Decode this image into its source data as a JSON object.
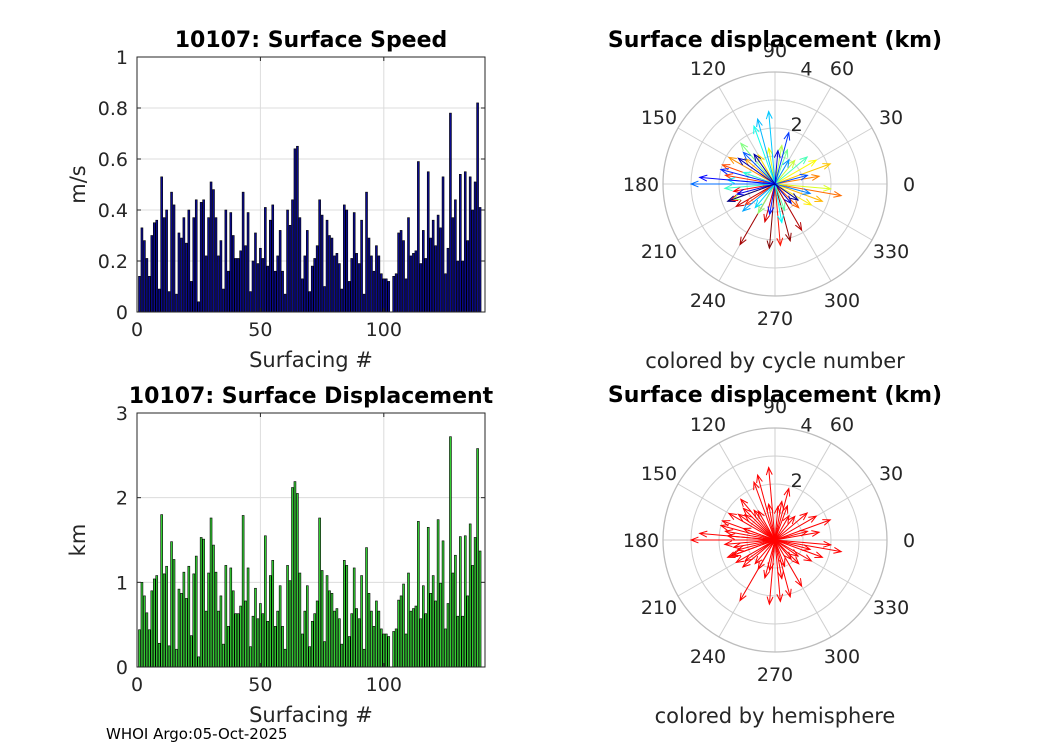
{
  "footer": "WHOI Argo:05-Oct-2025",
  "chart_data": [
    {
      "type": "bar",
      "title": "10107: Surface Speed",
      "xlabel": "Surfacing #",
      "ylabel": "m/s",
      "xlim": [
        0,
        141
      ],
      "ylim": [
        0,
        1
      ],
      "xticks": [
        "0",
        "50",
        "100"
      ],
      "yticks": [
        "0",
        "0.2",
        "0.4",
        "0.6",
        "0.8",
        "1"
      ],
      "color": "#0a0a8f",
      "values": [
        0.14,
        0.33,
        0.28,
        0.21,
        0.14,
        0.3,
        0.35,
        0.36,
        0.09,
        0.53,
        0.37,
        0.4,
        0.08,
        0.47,
        0.42,
        0.07,
        0.31,
        0.29,
        0.37,
        0.27,
        0.4,
        0.12,
        0.37,
        0.44,
        0.04,
        0.43,
        0.44,
        0.22,
        0.37,
        0.51,
        0.48,
        0.37,
        0.22,
        0.28,
        0.09,
        0.4,
        0.16,
        0.39,
        0.3,
        0.21,
        0.21,
        0.24,
        0.47,
        0.26,
        0.39,
        0.08,
        0.2,
        0.31,
        0.19,
        0.25,
        0.21,
        0.41,
        0.18,
        0.36,
        0.42,
        0.16,
        0.22,
        0.32,
        0.16,
        0.07,
        0.4,
        0.34,
        0.44,
        0.64,
        0.65,
        0.37,
        0.13,
        0.22,
        0.32,
        0.08,
        0.18,
        0.21,
        0.26,
        0.44,
        0.38,
        0.1,
        0.36,
        0.3,
        0.29,
        0.22,
        0.23,
        0.19,
        0.09,
        0.42,
        0.4,
        0.12,
        0.21,
        0.39,
        0.23,
        0.19,
        0.36,
        0.07,
        0.47,
        0.29,
        0.22,
        0.16,
        0.26,
        0.22,
        0.15,
        0.13,
        0.13,
        0.12,
        0.0,
        0.14,
        0.15,
        0.31,
        0.32,
        0.28,
        0.13,
        0.37,
        0.22,
        0.23,
        0.24,
        0.59,
        0.19,
        0.32,
        0.21,
        0.55,
        0.29,
        0.36,
        0.26,
        0.38,
        0.33,
        0.53,
        0.15,
        0.25,
        0.78,
        0.37,
        0.44,
        0.2,
        0.54,
        0.2,
        0.55,
        0.28,
        0.53,
        0.4,
        0.51,
        0.82,
        0.41,
        0.0
      ]
    },
    {
      "type": "bar",
      "title": "10107: Surface Displacement",
      "xlabel": "Surfacing #",
      "ylabel": "km",
      "xlim": [
        0,
        141
      ],
      "ylim": [
        0,
        3
      ],
      "xticks": [
        "0",
        "50",
        "100"
      ],
      "yticks": [
        "0",
        "1",
        "2",
        "3"
      ],
      "color": "#33cc33",
      "values": [
        0.44,
        1.0,
        0.84,
        0.64,
        0.44,
        0.9,
        1.04,
        1.08,
        0.28,
        1.8,
        1.1,
        1.19,
        0.25,
        1.48,
        1.27,
        0.21,
        0.92,
        0.87,
        1.12,
        0.81,
        1.19,
        0.37,
        1.1,
        1.31,
        0.12,
        1.53,
        1.51,
        0.66,
        1.11,
        1.76,
        1.44,
        1.12,
        0.66,
        0.84,
        0.27,
        1.2,
        0.48,
        1.17,
        0.9,
        0.63,
        0.63,
        0.72,
        1.79,
        0.78,
        1.17,
        0.24,
        0.6,
        0.93,
        0.57,
        0.75,
        0.63,
        1.55,
        0.54,
        1.08,
        1.26,
        0.48,
        0.66,
        0.96,
        0.48,
        0.21,
        1.2,
        1.02,
        2.12,
        2.19,
        2.05,
        1.11,
        0.39,
        0.66,
        0.96,
        0.24,
        0.54,
        0.63,
        0.78,
        1.76,
        1.14,
        0.3,
        1.08,
        0.9,
        0.87,
        0.66,
        0.69,
        0.57,
        0.27,
        1.26,
        1.2,
        0.36,
        0.63,
        1.17,
        0.69,
        0.57,
        1.08,
        0.21,
        1.41,
        0.87,
        0.66,
        0.48,
        0.78,
        0.66,
        0.45,
        0.39,
        0.39,
        0.36,
        0.0,
        0.42,
        0.45,
        0.79,
        0.84,
        0.98,
        0.39,
        1.11,
        0.66,
        0.69,
        0.72,
        1.72,
        0.57,
        0.96,
        0.63,
        1.65,
        0.87,
        1.08,
        0.78,
        1.74,
        0.99,
        1.49,
        0.45,
        0.75,
        2.72,
        1.11,
        1.32,
        0.6,
        1.54,
        0.6,
        1.55,
        0.84,
        1.69,
        1.2,
        1.53,
        2.58,
        1.37,
        0.0
      ]
    },
    {
      "type": "polar",
      "title": "Surface displacement (km)",
      "caption": "colored by cycle number",
      "rmax": 4,
      "r_tick_labels": [
        "2",
        "4"
      ],
      "theta_tick_labels": [
        "0",
        "30",
        "60",
        "90",
        "120",
        "150",
        "180",
        "210",
        "240",
        "270",
        "300",
        "330"
      ],
      "colormap": "jet",
      "vectors": [
        [
          2.3,
          -95
        ],
        [
          2.1,
          -75
        ],
        [
          2.5,
          -120
        ],
        [
          1.9,
          -60
        ],
        [
          1.6,
          -150
        ],
        [
          1.4,
          -105
        ],
        [
          1.7,
          200
        ],
        [
          1.5,
          190
        ],
        [
          2.2,
          -85
        ],
        [
          1.3,
          215
        ],
        [
          1.8,
          170
        ],
        [
          2.0,
          160
        ],
        [
          1.2,
          -45
        ],
        [
          2.4,
          -10
        ],
        [
          1.6,
          10
        ],
        [
          1.9,
          150
        ],
        [
          1.4,
          140
        ],
        [
          1.8,
          -20
        ],
        [
          2.1,
          20
        ],
        [
          1.2,
          120
        ],
        [
          1.5,
          -30
        ],
        [
          1.7,
          30
        ],
        [
          1.3,
          100
        ],
        [
          2.0,
          -5
        ],
        [
          1.1,
          50
        ],
        [
          1.4,
          80
        ],
        [
          1.6,
          200
        ],
        [
          1.2,
          -120
        ],
        [
          1.9,
          130
        ],
        [
          1.3,
          70
        ],
        [
          1.0,
          -70
        ],
        [
          1.5,
          40
        ],
        [
          1.8,
          185
        ],
        [
          1.2,
          160
        ],
        [
          2.2,
          110
        ],
        [
          1.4,
          -80
        ],
        [
          1.7,
          175
        ],
        [
          1.1,
          230
        ],
        [
          2.6,
          95
        ],
        [
          2.4,
          105
        ],
        [
          1.5,
          -140
        ],
        [
          1.0,
          60
        ],
        [
          1.3,
          -15
        ],
        [
          3.0,
          180
        ],
        [
          1.6,
          135
        ],
        [
          1.2,
          15
        ],
        [
          1.9,
          75
        ],
        [
          2.0,
          165
        ],
        [
          1.1,
          -100
        ],
        [
          2.7,
          175
        ],
        [
          1.4,
          195
        ],
        [
          1.2,
          85
        ],
        [
          0.9,
          -50
        ],
        [
          1.6,
          145
        ],
        [
          1.3,
          125
        ],
        [
          1.0,
          -35
        ],
        [
          1.8,
          -160
        ]
      ]
    },
    {
      "type": "polar",
      "title": "Surface displacement (km)",
      "caption": "colored by hemisphere",
      "rmax": 4,
      "r_tick_labels": [
        "2",
        "4"
      ],
      "theta_tick_labels": [
        "0",
        "30",
        "60",
        "90",
        "120",
        "150",
        "180",
        "210",
        "240",
        "270",
        "300",
        "330"
      ],
      "color": "#ff0000",
      "vectors": [
        [
          2.3,
          -95
        ],
        [
          2.1,
          -75
        ],
        [
          2.5,
          -120
        ],
        [
          1.9,
          -60
        ],
        [
          1.6,
          -150
        ],
        [
          1.4,
          -105
        ],
        [
          1.7,
          200
        ],
        [
          1.5,
          190
        ],
        [
          2.2,
          -85
        ],
        [
          1.3,
          215
        ],
        [
          1.8,
          170
        ],
        [
          2.0,
          160
        ],
        [
          1.2,
          -45
        ],
        [
          2.4,
          -10
        ],
        [
          1.6,
          10
        ],
        [
          1.9,
          150
        ],
        [
          1.4,
          140
        ],
        [
          1.8,
          -20
        ],
        [
          2.1,
          20
        ],
        [
          1.2,
          120
        ],
        [
          1.5,
          -30
        ],
        [
          1.7,
          30
        ],
        [
          1.3,
          100
        ],
        [
          2.0,
          -5
        ],
        [
          1.1,
          50
        ],
        [
          1.4,
          80
        ],
        [
          1.6,
          200
        ],
        [
          1.2,
          -120
        ],
        [
          1.9,
          130
        ],
        [
          1.3,
          70
        ],
        [
          1.0,
          -70
        ],
        [
          1.5,
          40
        ],
        [
          1.8,
          185
        ],
        [
          1.2,
          160
        ],
        [
          2.2,
          110
        ],
        [
          1.4,
          -80
        ],
        [
          1.7,
          175
        ],
        [
          1.1,
          230
        ],
        [
          2.6,
          95
        ],
        [
          2.4,
          105
        ],
        [
          1.5,
          -140
        ],
        [
          1.0,
          60
        ],
        [
          1.3,
          -15
        ],
        [
          3.0,
          180
        ],
        [
          1.6,
          135
        ],
        [
          1.2,
          15
        ],
        [
          1.9,
          75
        ],
        [
          2.0,
          165
        ],
        [
          1.1,
          -100
        ],
        [
          2.7,
          175
        ],
        [
          1.4,
          195
        ],
        [
          1.2,
          85
        ],
        [
          0.9,
          -50
        ],
        [
          1.6,
          145
        ],
        [
          1.3,
          125
        ],
        [
          1.0,
          -35
        ],
        [
          1.8,
          -160
        ]
      ]
    }
  ]
}
